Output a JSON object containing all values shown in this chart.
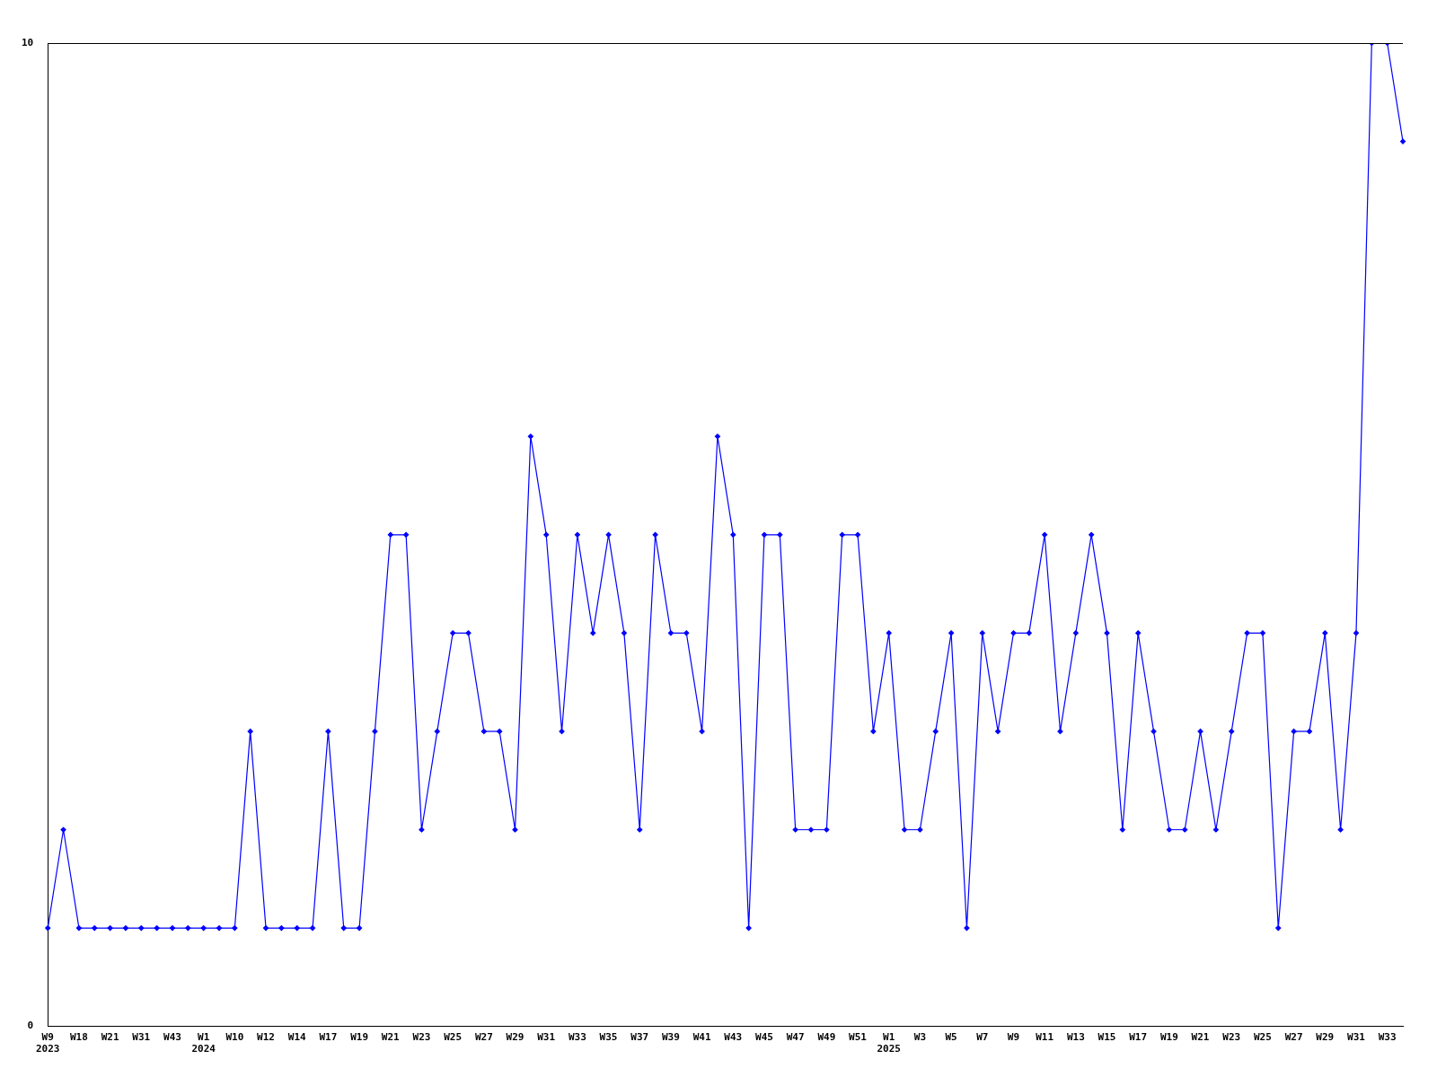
{
  "chart_data": {
    "type": "line",
    "categories": [
      "W9\n2023",
      null,
      "W18",
      null,
      "W21",
      null,
      "W31",
      null,
      "W43",
      null,
      "W1\n2024",
      null,
      "W10",
      null,
      "W12",
      null,
      "W14",
      null,
      "W17",
      null,
      "W19",
      null,
      "W21",
      null,
      "W23",
      null,
      "W25",
      null,
      "W27",
      null,
      "W29",
      null,
      "W31",
      null,
      "W33",
      null,
      "W35",
      null,
      "W37",
      null,
      "W39",
      null,
      "W41",
      null,
      "W43",
      null,
      "W45",
      null,
      "W47",
      null,
      "W49",
      null,
      "W51",
      null,
      "W1\n2025",
      null,
      "W3",
      null,
      "W5",
      null,
      "W7",
      null,
      "W9",
      null,
      "W11",
      null,
      "W13",
      null,
      "W15",
      null,
      "W17",
      null,
      "W19",
      null,
      "W21",
      null,
      "W23",
      null,
      "W25",
      null,
      "W27",
      null,
      "W29",
      null,
      "W31",
      null,
      "W33",
      null
    ],
    "series": [
      {
        "color": "#0000ff",
        "values": [
          1,
          2,
          1,
          1,
          1,
          1,
          1,
          1,
          1,
          1,
          1,
          1,
          1,
          3,
          1,
          1,
          1,
          1,
          3,
          1,
          1,
          3,
          5,
          5,
          2,
          3,
          4,
          4,
          3,
          3,
          2,
          6,
          5,
          3,
          5,
          4,
          5,
          4,
          2,
          5,
          4,
          4,
          3,
          6,
          5,
          1,
          5,
          5,
          2,
          2,
          2,
          5,
          5,
          3,
          4,
          2,
          2,
          3,
          4,
          1,
          4,
          3,
          4,
          4,
          5,
          3,
          4,
          5,
          4,
          2,
          4,
          3,
          2,
          2,
          3,
          2,
          3,
          4,
          4,
          1,
          3,
          3,
          4,
          2,
          4,
          10,
          10,
          9
        ]
      }
    ],
    "ylim": [
      0,
      10
    ],
    "yticks": [
      0,
      10
    ],
    "grid": false,
    "legend": false,
    "marker": "diamond",
    "line_style": "solid"
  }
}
